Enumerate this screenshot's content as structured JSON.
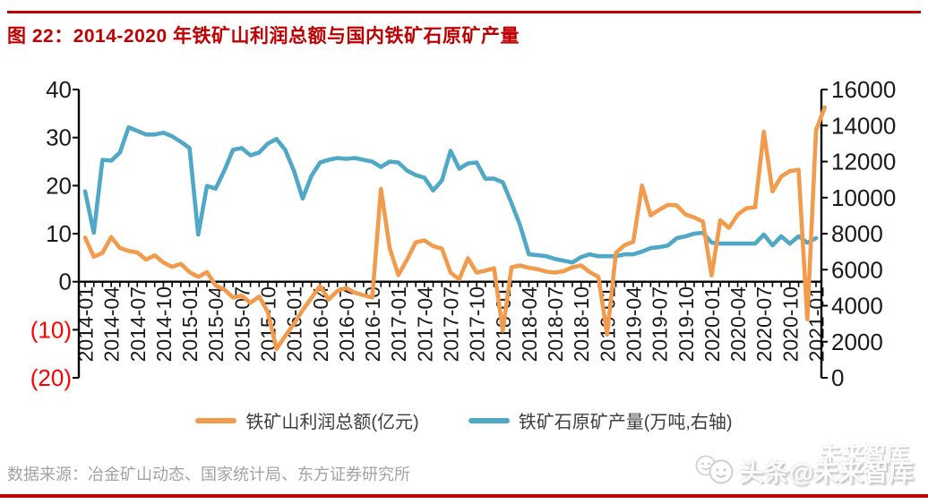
{
  "page": {
    "title": "图 22：2014-2020 年铁矿山利润总额与国内铁矿石原矿产量",
    "source": "数据来源：冶金矿山动态、国家统计局、东方证券研究所",
    "watermark": "头条@未来智库",
    "watermark_secondary": "未来智库",
    "accent_red": "#C00000"
  },
  "chart_data": {
    "type": "line",
    "title": "2014-2020 年铁矿山利润总额与国内铁矿石原矿产量",
    "x_start": "2014-01",
    "x_frequency": "monthly",
    "x_tick_labels": [
      "2014-01",
      "2014-04",
      "2014-07",
      "2014-10",
      "2015-01",
      "2015-04",
      "2015-07",
      "2015-10",
      "2016-01",
      "2016-04",
      "2016-07",
      "2016-10",
      "2017-01",
      "2017-04",
      "2017-07",
      "2017-10",
      "2018-01",
      "2018-04",
      "2018-07",
      "2018-10",
      "2019-01",
      "2019-04",
      "2019-07",
      "2019-10",
      "2020-01",
      "2020-04",
      "2020-07",
      "2020-10",
      "2021-01"
    ],
    "months_per_tick": 3,
    "left_axis": {
      "tick_labels": [
        "40",
        "30",
        "20",
        "10",
        "0",
        "(10)",
        "(20)"
      ],
      "tick_values": [
        40,
        30,
        20,
        10,
        0,
        -10,
        -20
      ],
      "range": [
        -20,
        40
      ],
      "negative_label_color": "#FF0000",
      "label_color": "#1a1a1a"
    },
    "right_axis": {
      "tick_values": [
        0,
        2000,
        4000,
        6000,
        8000,
        10000,
        12000,
        14000,
        16000
      ],
      "range": [
        0,
        16000
      ],
      "label_color": "#1a1a1a"
    },
    "grid": false,
    "legend_position": "bottom",
    "series": [
      {
        "name": "铁矿山利润总额(亿元)",
        "color": "#F29B4D",
        "axis": "left",
        "values": [
          9.2,
          5.2,
          6.0,
          9.3,
          7.0,
          6.4,
          6.1,
          4.6,
          5.5,
          4.0,
          3.1,
          3.7,
          2.0,
          1.0,
          2.0,
          -0.8,
          -1.6,
          -3.3,
          -2.9,
          -4.4,
          -3.1,
          -6.3,
          -14.0,
          -11.3,
          -8.8,
          -5.9,
          -3.4,
          -0.9,
          -3.7,
          -1.9,
          -1.3,
          -2.3,
          -2.8,
          -3.3,
          19.3,
          7.0,
          1.4,
          4.6,
          8.2,
          8.6,
          7.4,
          6.9,
          1.9,
          0.5,
          4.9,
          1.9,
          2.3,
          2.8,
          -10.2,
          3.0,
          3.4,
          2.9,
          2.6,
          2.1,
          1.9,
          2.2,
          3.0,
          3.4,
          2.0,
          1.0,
          -11.0,
          6.0,
          7.6,
          8.3,
          20.0,
          13.8,
          15.0,
          16.0,
          15.9,
          14.0,
          13.4,
          12.5,
          1.3,
          12.8,
          11.2,
          14.0,
          15.3,
          15.5,
          31.2,
          18.8,
          21.9,
          23.0,
          23.3,
          -7.8,
          31.5,
          36.3
        ]
      },
      {
        "name": "铁矿石原矿产量(万吨,右轴)",
        "color": "#4FA8C5",
        "axis": "right",
        "values": [
          10350,
          8050,
          12100,
          12050,
          12500,
          13900,
          13700,
          13500,
          13500,
          13600,
          13400,
          13100,
          12750,
          7950,
          10650,
          10500,
          11500,
          12650,
          12750,
          12350,
          12500,
          13000,
          13250,
          12650,
          11500,
          9950,
          11200,
          11950,
          12100,
          12200,
          12150,
          12200,
          12100,
          12000,
          11700,
          12000,
          11950,
          11500,
          11250,
          11100,
          10400,
          10950,
          12600,
          11600,
          11900,
          11950,
          11050,
          11050,
          10850,
          9700,
          8450,
          6850,
          6800,
          6750,
          6600,
          6500,
          6400,
          6700,
          6850,
          6750,
          6750,
          6750,
          6850,
          6850,
          7000,
          7200,
          7250,
          7350,
          7750,
          7850,
          8000,
          8050,
          7500,
          7450,
          7450,
          7450,
          7450,
          7450,
          7950,
          7350,
          7850,
          7450,
          7850,
          7500,
          7750
        ]
      }
    ]
  }
}
